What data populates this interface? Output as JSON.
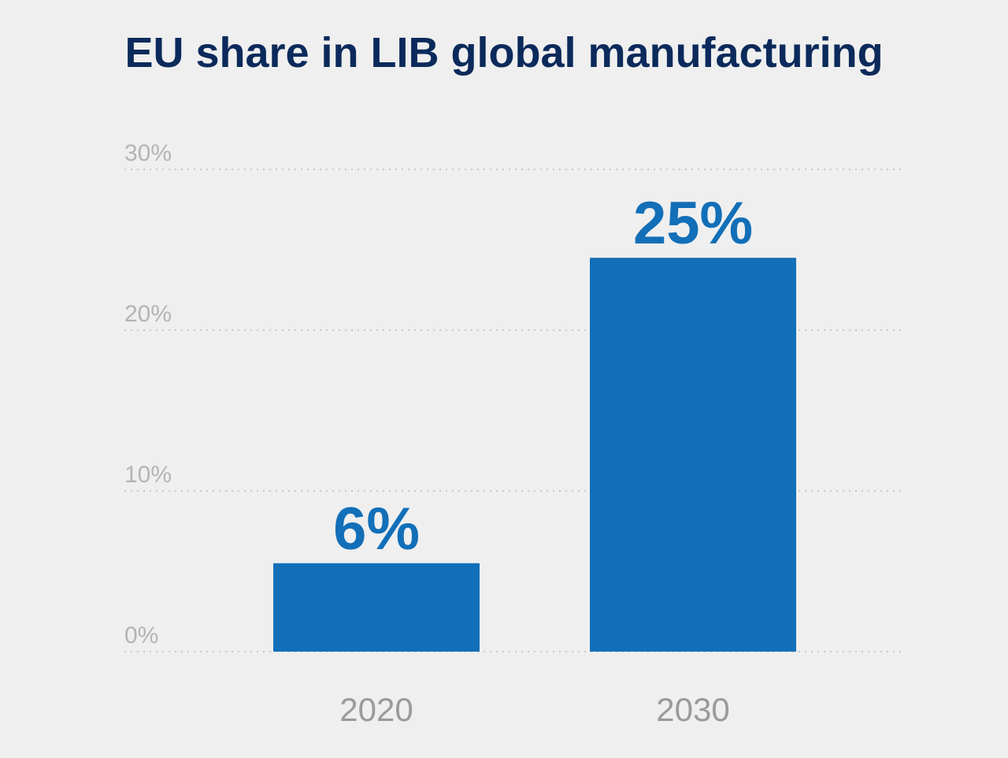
{
  "chart_data": {
    "type": "bar",
    "title": "EU share in LIB global manufacturing",
    "categories": [
      "2020",
      "2030"
    ],
    "values": [
      5.5,
      24.5
    ],
    "value_labels": [
      "6%",
      "25%"
    ],
    "xlabel": "",
    "ylabel": "",
    "ylim": [
      0,
      30
    ],
    "yticks": [
      0,
      10,
      20,
      30
    ],
    "ytick_labels": [
      "0%",
      "10%",
      "20%",
      "30%"
    ],
    "grid": true,
    "grid_style": "dotted",
    "legend": "none",
    "colors": {
      "bar": "#126fb8",
      "value_label": "#126fb8",
      "title": "#0b2a5b",
      "tick_label": "#b4b4b4",
      "category_label": "#9a9a9a",
      "gridline": "#c8c8c8",
      "background": "#efefef"
    }
  }
}
